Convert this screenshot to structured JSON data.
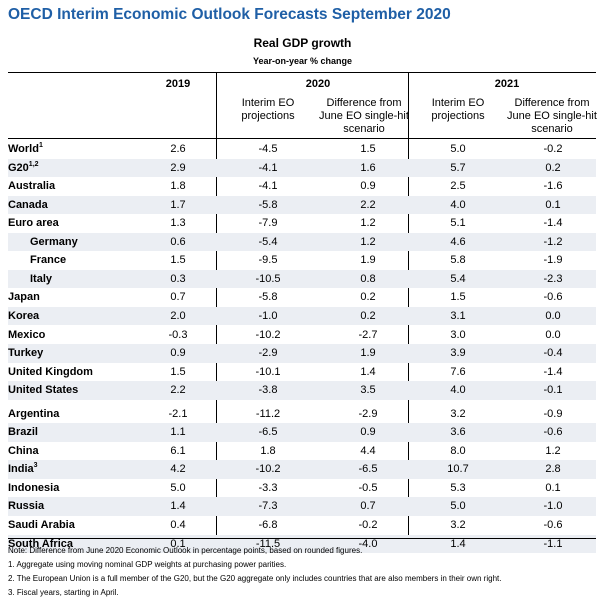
{
  "title": "OECD Interim Economic Outlook Forecasts September 2020",
  "subtitle": "Real GDP growth",
  "unit": "Year-on-year % change",
  "columns": {
    "y2019": "2019",
    "y2020": "2020",
    "y2021": "2021",
    "interim_2020": "Interim EO projections",
    "diff_2020": "Difference from June EO single-hit scenario",
    "interim_2021": "Interim EO projections",
    "diff_2021": "Difference from June EO single-hit scenario"
  },
  "rows": [
    {
      "name": "World",
      "sup": "1",
      "values": [
        "2.6",
        "-4.5",
        "1.5",
        "5.0",
        "-0.2"
      ]
    },
    {
      "name": "G20",
      "sup": "1,2",
      "values": [
        "2.9",
        "-4.1",
        "1.6",
        "5.7",
        "0.2"
      ]
    },
    {
      "name": "Australia",
      "sup": "",
      "values": [
        "1.8",
        "-4.1",
        "0.9",
        "2.5",
        "-1.6"
      ]
    },
    {
      "name": "Canada",
      "sup": "",
      "values": [
        "1.7",
        "-5.8",
        "2.2",
        "4.0",
        "0.1"
      ]
    },
    {
      "name": "Euro area",
      "sup": "",
      "values": [
        "1.3",
        "-7.9",
        "1.2",
        "5.1",
        "-1.4"
      ]
    },
    {
      "name": "Germany",
      "sup": "",
      "values": [
        "0.6",
        "-5.4",
        "1.2",
        "4.6",
        "-1.2"
      ]
    },
    {
      "name": "France",
      "sup": "",
      "values": [
        "1.5",
        "-9.5",
        "1.9",
        "5.8",
        "-1.9"
      ]
    },
    {
      "name": "Italy",
      "sup": "",
      "values": [
        "0.3",
        "-10.5",
        "0.8",
        "5.4",
        "-2.3"
      ]
    },
    {
      "name": "Japan",
      "sup": "",
      "values": [
        "0.7",
        "-5.8",
        "0.2",
        "1.5",
        "-0.6"
      ]
    },
    {
      "name": "Korea",
      "sup": "",
      "values": [
        "2.0",
        "-1.0",
        "0.2",
        "3.1",
        "0.0"
      ]
    },
    {
      "name": "Mexico",
      "sup": "",
      "values": [
        "-0.3",
        "-10.2",
        "-2.7",
        "3.0",
        "0.0"
      ]
    },
    {
      "name": "Turkey",
      "sup": "",
      "values": [
        "0.9",
        "-2.9",
        "1.9",
        "3.9",
        "-0.4"
      ]
    },
    {
      "name": "United Kingdom",
      "sup": "",
      "values": [
        "1.5",
        "-10.1",
        "1.4",
        "7.6",
        "-1.4"
      ]
    },
    {
      "name": "United States",
      "sup": "",
      "values": [
        "2.2",
        "-3.8",
        "3.5",
        "4.0",
        "-0.1"
      ]
    },
    {
      "name": "Argentina",
      "sup": "",
      "values": [
        "-2.1",
        "-11.2",
        "-2.9",
        "3.2",
        "-0.9"
      ]
    },
    {
      "name": "Brazil",
      "sup": "",
      "values": [
        "1.1",
        "-6.5",
        "0.9",
        "3.6",
        "-0.6"
      ]
    },
    {
      "name": "China",
      "sup": "",
      "values": [
        "6.1",
        "1.8",
        "4.4",
        "8.0",
        "1.2"
      ]
    },
    {
      "name": "India",
      "sup": "3",
      "values": [
        "4.2",
        "-10.2",
        "-6.5",
        "10.7",
        "2.8"
      ]
    },
    {
      "name": "Indonesia",
      "sup": "",
      "values": [
        "5.0",
        "-3.3",
        "-0.5",
        "5.3",
        "0.1"
      ]
    },
    {
      "name": "Russia",
      "sup": "",
      "values": [
        "1.4",
        "-7.3",
        "0.7",
        "5.0",
        "-1.0"
      ]
    },
    {
      "name": "Saudi Arabia",
      "sup": "",
      "values": [
        "0.4",
        "-6.8",
        "-0.2",
        "3.2",
        "-0.6"
      ]
    },
    {
      "name": "South Africa",
      "sup": "",
      "values": [
        "0.1",
        "-11.5",
        "-4.0",
        "1.4",
        "-1.1"
      ]
    }
  ],
  "notes": [
    "Note: Difference from June 2020 Economic Outlook in percentage points, based on rounded figures.",
    "1. Aggregate using moving nominal GDP weights at purchasing power parities.",
    "2. The European Union is a full member of the G20, but the G20 aggregate only includes countries that are also members in their own right.",
    "3. Fiscal years, starting in April."
  ]
}
